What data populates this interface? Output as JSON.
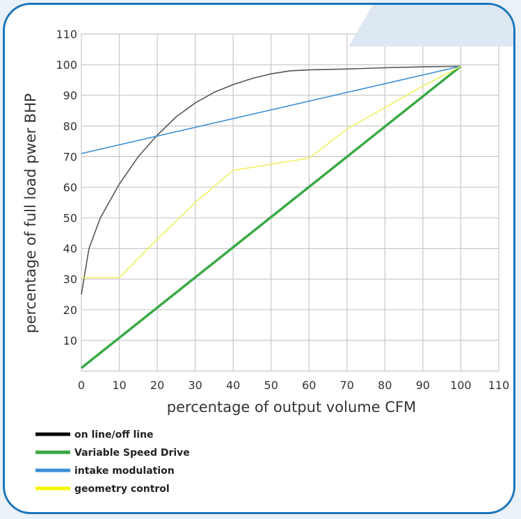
{
  "chart_data": {
    "type": "line",
    "title": "",
    "xlabel": "percentage of output volume CFM",
    "ylabel": "percentage of full load pwer BHP",
    "xlim": [
      0,
      110
    ],
    "ylim": [
      0,
      110
    ],
    "x_ticks": [
      "0",
      "10",
      "20",
      "30",
      "40",
      "50",
      "60",
      "70",
      "80",
      "90",
      "100",
      "110"
    ],
    "y_ticks": [
      "10",
      "20",
      "30",
      "40",
      "50",
      "60",
      "70",
      "80",
      "90",
      "100",
      "110"
    ],
    "grid": true,
    "legend_position": "bottom-left",
    "series": [
      {
        "name": "on line/off line",
        "color": "#555555",
        "legend_color": "#000000",
        "x": [
          0,
          2,
          5,
          10,
          15,
          20,
          25,
          30,
          35,
          40,
          45,
          50,
          55,
          60,
          70,
          80,
          90,
          100
        ],
        "y": [
          25,
          40,
          50,
          61,
          70,
          77,
          83,
          87.5,
          91,
          93.5,
          95.5,
          97,
          98,
          98.3,
          98.6,
          99,
          99.3,
          99.5
        ]
      },
      {
        "name": "Variable Speed Drive",
        "color": "#3aa845",
        "legend_color": "#3aa845",
        "x": [
          0,
          100
        ],
        "y": [
          1,
          99.5
        ]
      },
      {
        "name": "intake modulation",
        "color": "#3b8fd6",
        "legend_color": "#3b8fd6",
        "x": [
          0,
          100
        ],
        "y": [
          71,
          99.5
        ]
      },
      {
        "name": "geometry control",
        "color": "#f0f060",
        "legend_color": "#f5f500",
        "x": [
          0,
          10,
          20,
          30,
          40,
          60,
          70,
          80,
          90,
          100
        ],
        "y": [
          30.5,
          30.5,
          43,
          55,
          65.5,
          69.5,
          79,
          86,
          93,
          99.5
        ]
      }
    ]
  }
}
